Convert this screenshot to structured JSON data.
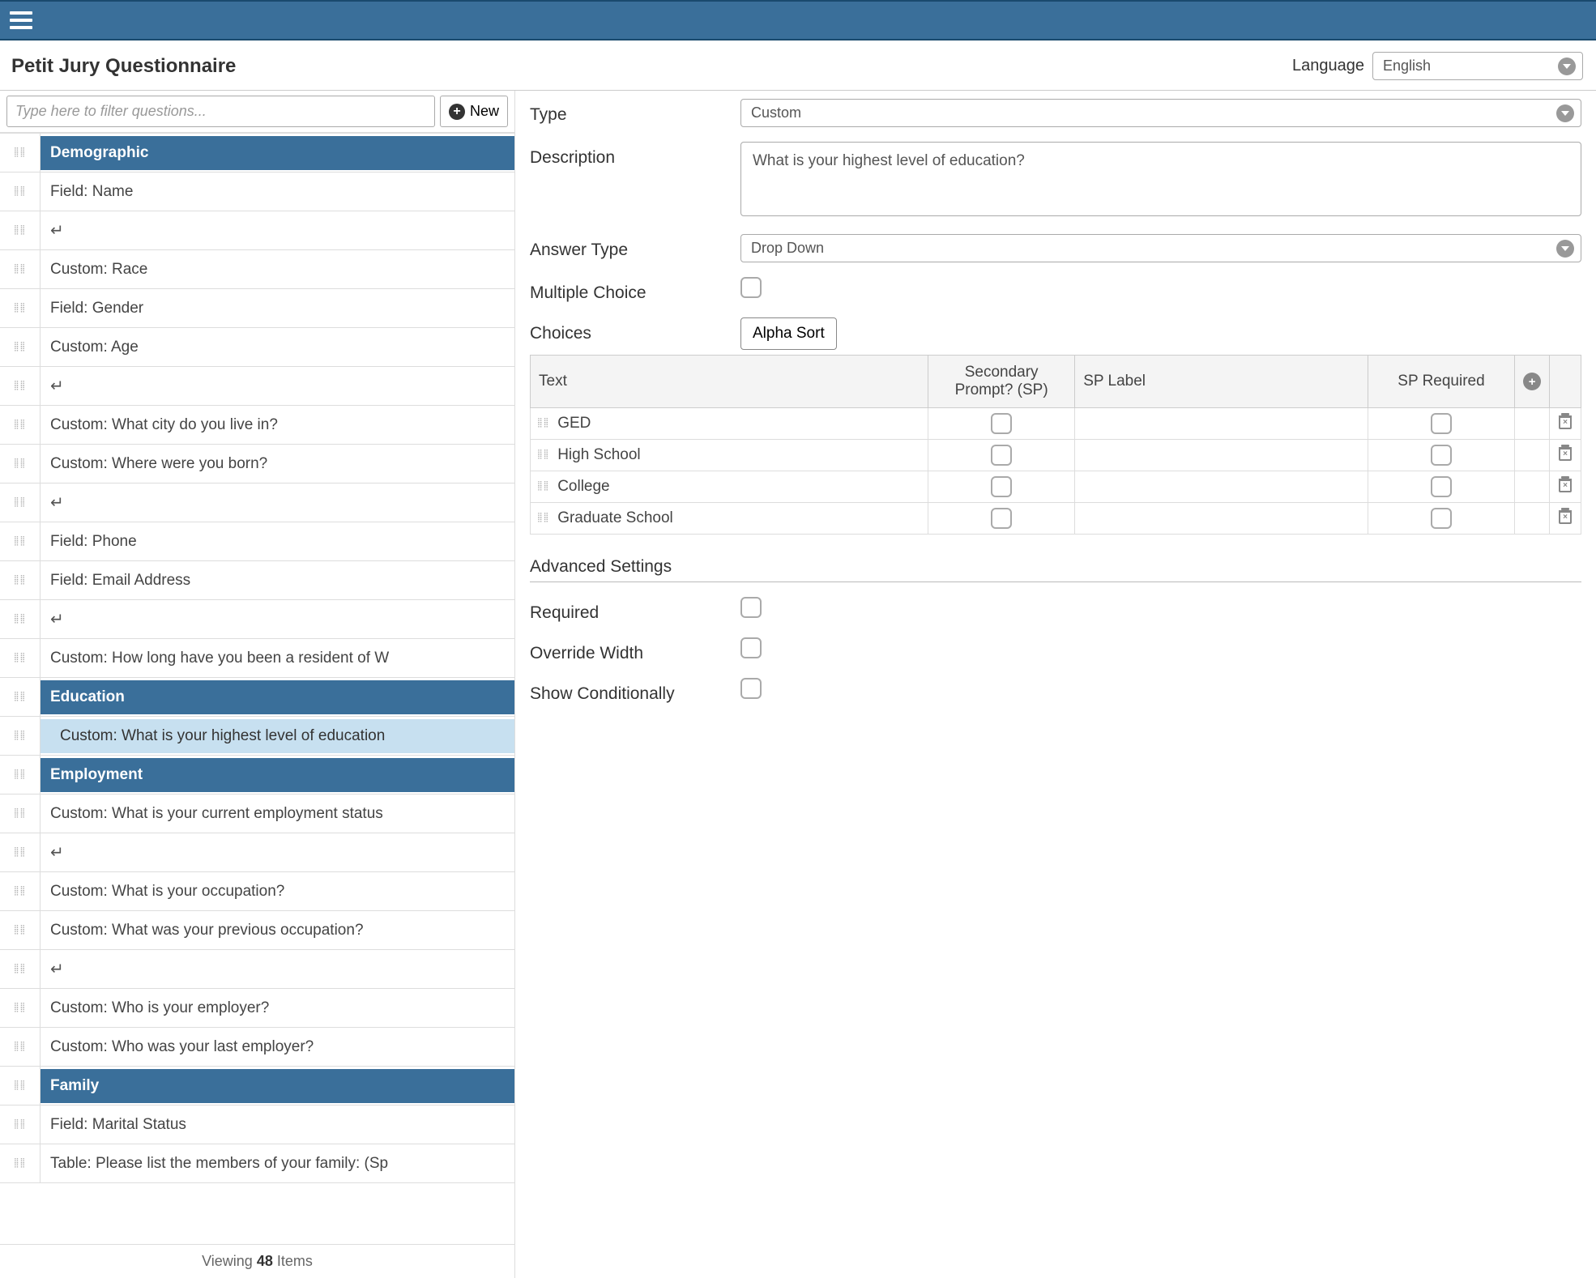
{
  "colors": {
    "header_bg": "#3a6f9a",
    "section_bg": "#3a6f9a",
    "selected_bg": "#c7e0f0",
    "border": "#cccccc"
  },
  "header": {
    "page_title": "Petit Jury Questionnaire",
    "language_label": "Language",
    "language_value": "English"
  },
  "sidebar": {
    "filter_placeholder": "Type here to filter questions...",
    "new_button_label": "New",
    "viewing_prefix": "Viewing ",
    "viewing_count": "48",
    "viewing_suffix": " Items",
    "items": [
      {
        "type": "section",
        "label": "Demographic"
      },
      {
        "type": "item",
        "label": "Field: Name"
      },
      {
        "type": "break",
        "label": "↵"
      },
      {
        "type": "item",
        "label": "Custom: Race"
      },
      {
        "type": "item",
        "label": "Field: Gender"
      },
      {
        "type": "item",
        "label": "Custom: Age"
      },
      {
        "type": "break",
        "label": "↵"
      },
      {
        "type": "item",
        "label": "Custom: What city do you live in?"
      },
      {
        "type": "item",
        "label": "Custom: Where were you born?"
      },
      {
        "type": "break",
        "label": "↵"
      },
      {
        "type": "item",
        "label": "Field: Phone"
      },
      {
        "type": "item",
        "label": "Field: Email Address"
      },
      {
        "type": "break",
        "label": "↵"
      },
      {
        "type": "item",
        "label": "Custom: How long have you been a resident of W"
      },
      {
        "type": "section",
        "label": "Education"
      },
      {
        "type": "item",
        "label": "Custom: What is your highest level of education",
        "selected": true
      },
      {
        "type": "section",
        "label": "Employment"
      },
      {
        "type": "item",
        "label": "Custom: What is your current employment status"
      },
      {
        "type": "break",
        "label": "↵"
      },
      {
        "type": "item",
        "label": "Custom: What is your occupation?"
      },
      {
        "type": "item",
        "label": "Custom: What was your previous occupation?"
      },
      {
        "type": "break",
        "label": "↵"
      },
      {
        "type": "item",
        "label": "Custom: Who is your employer?"
      },
      {
        "type": "item",
        "label": "Custom: Who was your last employer?"
      },
      {
        "type": "section",
        "label": "Family"
      },
      {
        "type": "item",
        "label": "Field: Marital Status"
      },
      {
        "type": "item",
        "label": "Table: Please list the members of your family: (Sp"
      }
    ]
  },
  "detail": {
    "type_label": "Type",
    "type_value": "Custom",
    "description_label": "Description",
    "description_value": "What is your highest level of education?",
    "answer_type_label": "Answer Type",
    "answer_type_value": "Drop Down",
    "multiple_choice_label": "Multiple Choice",
    "multiple_choice_checked": false,
    "choices_label": "Choices",
    "alpha_sort_label": "Alpha Sort",
    "choices_columns": {
      "text": "Text",
      "sp": "Secondary Prompt? (SP)",
      "sp_label": "SP Label",
      "sp_required": "SP Required"
    },
    "choices": [
      {
        "text": "GED",
        "sp": false,
        "sp_label": "",
        "sp_required": false
      },
      {
        "text": "High School",
        "sp": false,
        "sp_label": "",
        "sp_required": false
      },
      {
        "text": "College",
        "sp": false,
        "sp_label": "",
        "sp_required": false
      },
      {
        "text": "Graduate School",
        "sp": false,
        "sp_label": "",
        "sp_required": false
      }
    ],
    "advanced_label": "Advanced Settings",
    "required_label": "Required",
    "required_checked": false,
    "override_width_label": "Override Width",
    "override_width_checked": false,
    "show_conditionally_label": "Show Conditionally",
    "show_conditionally_checked": false
  }
}
